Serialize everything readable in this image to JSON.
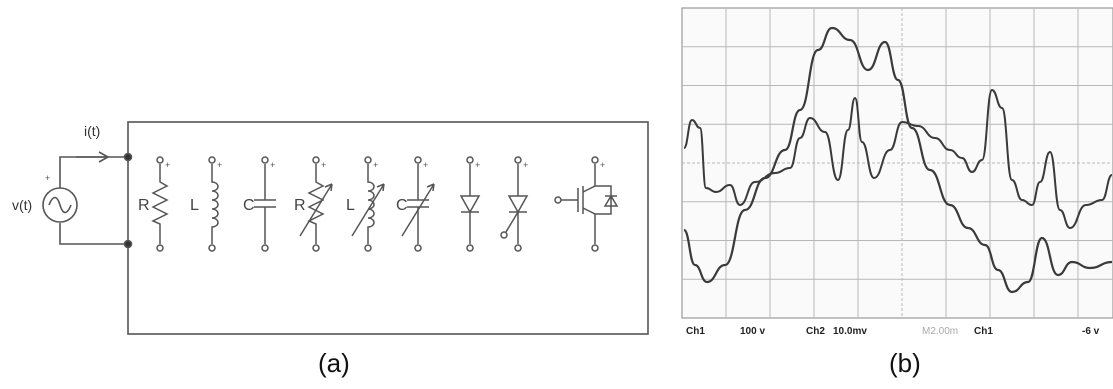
{
  "panel_a": {
    "caption": "(a)",
    "source_label": "v(t)",
    "current_label": "i(t)",
    "elements": [
      {
        "type": "resistor",
        "label": "R"
      },
      {
        "type": "inductor",
        "label": "L"
      },
      {
        "type": "capacitor",
        "label": "C"
      },
      {
        "type": "variable-resistor",
        "label": "R"
      },
      {
        "type": "variable-inductor",
        "label": "L"
      },
      {
        "type": "variable-capacitor",
        "label": "C"
      },
      {
        "type": "diode",
        "label": ""
      },
      {
        "type": "thyristor",
        "label": ""
      },
      {
        "type": "igbt",
        "label": ""
      }
    ]
  },
  "panel_b": {
    "caption": "(b)",
    "status": {
      "ch1": "Ch1",
      "ch1_scale": "100 v",
      "ch2": "Ch2",
      "ch2_scale": "10.0mv",
      "timebase": "M2.00m",
      "trig_ch": "Ch1",
      "trig_level": "-6 v"
    }
  },
  "colors": {
    "line": "#555555",
    "grid": "#b8b8b8",
    "trace": "#3a3a3a",
    "caption": "#111111"
  }
}
